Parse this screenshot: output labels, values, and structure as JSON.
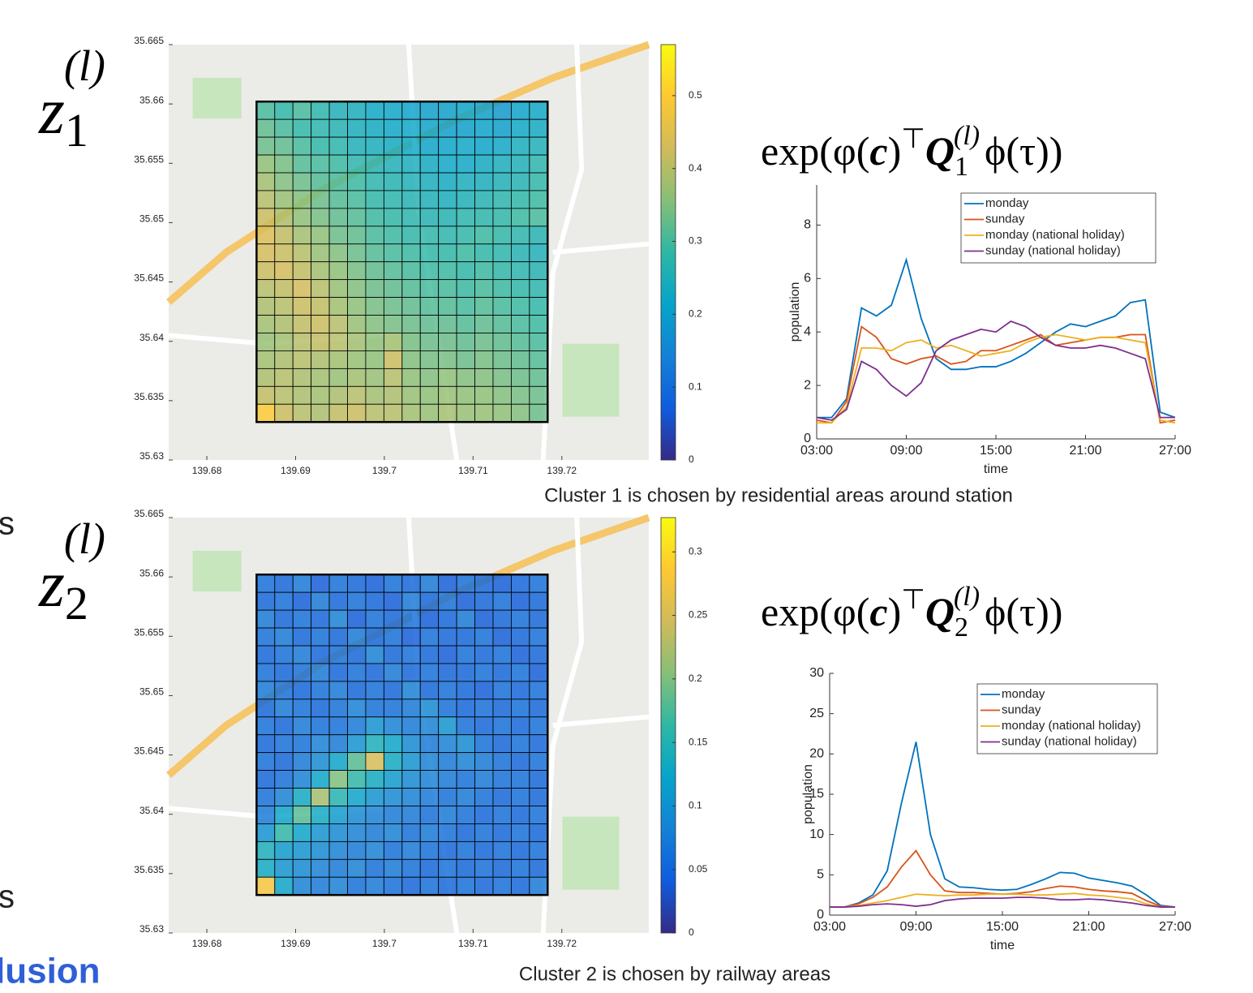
{
  "fragments": [
    "s",
    "s",
    "lusion"
  ],
  "panel_labels": [
    {
      "base": "z",
      "sub": "1",
      "sup": "(l)"
    },
    {
      "base": "z",
      "sub": "2",
      "sup": "(l)"
    }
  ],
  "formulas": [
    {
      "parts": [
        "exp(",
        "φ(",
        "c",
        ")",
        "⊤",
        "Q",
        "1",
        "(l)",
        "ϕ(τ))"
      ]
    },
    {
      "parts": [
        "exp(",
        "φ(",
        "c",
        ")",
        "⊤",
        "Q",
        "2",
        "(l)",
        "ϕ(τ))"
      ]
    }
  ],
  "captions": [
    "Cluster 1 is chosen by residential areas around station",
    "Cluster 2 is chosen by railway areas"
  ],
  "chart_data": [
    {
      "type": "heatmap",
      "colormap": "parula",
      "xlim": [
        139.6757,
        139.7298
      ],
      "ylim": [
        35.63,
        35.665
      ],
      "xticks": [
        139.68,
        139.69,
        139.7,
        139.71,
        139.72
      ],
      "yticks": [
        35.63,
        35.635,
        35.64,
        35.645,
        35.65,
        35.655,
        35.66,
        35.665
      ],
      "grid_xlim": [
        139.6856,
        139.7184
      ],
      "grid_ylim": [
        35.6332,
        35.6602
      ],
      "clim": [
        0,
        0.57
      ],
      "cticks": [
        0,
        0.1,
        0.2,
        0.3,
        0.4,
        0.5
      ],
      "z": [
        [
          0.3,
          0.28,
          0.3,
          0.27,
          0.25,
          0.24,
          0.22,
          0.22,
          0.21,
          0.2,
          0.2,
          0.21,
          0.2,
          0.19,
          0.21,
          0.22
        ],
        [
          0.32,
          0.3,
          0.28,
          0.27,
          0.26,
          0.24,
          0.23,
          0.22,
          0.22,
          0.21,
          0.2,
          0.2,
          0.21,
          0.2,
          0.22,
          0.23
        ],
        [
          0.33,
          0.32,
          0.3,
          0.28,
          0.27,
          0.25,
          0.24,
          0.23,
          0.22,
          0.21,
          0.21,
          0.22,
          0.21,
          0.22,
          0.24,
          0.25
        ],
        [
          0.36,
          0.34,
          0.31,
          0.3,
          0.29,
          0.27,
          0.26,
          0.25,
          0.24,
          0.23,
          0.22,
          0.22,
          0.23,
          0.24,
          0.25,
          0.27
        ],
        [
          0.38,
          0.35,
          0.33,
          0.31,
          0.3,
          0.29,
          0.27,
          0.26,
          0.25,
          0.24,
          0.23,
          0.24,
          0.24,
          0.25,
          0.26,
          0.28
        ],
        [
          0.4,
          0.37,
          0.35,
          0.33,
          0.31,
          0.3,
          0.28,
          0.27,
          0.26,
          0.25,
          0.24,
          0.25,
          0.26,
          0.27,
          0.28,
          0.29
        ],
        [
          0.42,
          0.39,
          0.36,
          0.34,
          0.32,
          0.31,
          0.29,
          0.28,
          0.27,
          0.26,
          0.26,
          0.27,
          0.27,
          0.28,
          0.29,
          0.3
        ],
        [
          0.44,
          0.41,
          0.38,
          0.36,
          0.33,
          0.32,
          0.3,
          0.29,
          0.28,
          0.28,
          0.27,
          0.28,
          0.29,
          0.28,
          0.27,
          0.26
        ],
        [
          0.43,
          0.42,
          0.4,
          0.37,
          0.35,
          0.33,
          0.31,
          0.3,
          0.29,
          0.28,
          0.28,
          0.29,
          0.28,
          0.27,
          0.26,
          0.25
        ],
        [
          0.42,
          0.43,
          0.41,
          0.38,
          0.36,
          0.34,
          0.32,
          0.31,
          0.3,
          0.29,
          0.29,
          0.28,
          0.29,
          0.28,
          0.27,
          0.26
        ],
        [
          0.4,
          0.41,
          0.43,
          0.4,
          0.37,
          0.35,
          0.33,
          0.32,
          0.31,
          0.3,
          0.3,
          0.29,
          0.3,
          0.29,
          0.28,
          0.27
        ],
        [
          0.39,
          0.4,
          0.42,
          0.41,
          0.38,
          0.36,
          0.34,
          0.33,
          0.32,
          0.31,
          0.31,
          0.3,
          0.31,
          0.3,
          0.29,
          0.28
        ],
        [
          0.38,
          0.39,
          0.41,
          0.42,
          0.4,
          0.37,
          0.35,
          0.34,
          0.33,
          0.32,
          0.32,
          0.31,
          0.32,
          0.31,
          0.3,
          0.29
        ],
        [
          0.37,
          0.38,
          0.4,
          0.41,
          0.4,
          0.38,
          0.36,
          0.38,
          0.34,
          0.33,
          0.33,
          0.32,
          0.33,
          0.32,
          0.31,
          0.3
        ],
        [
          0.38,
          0.39,
          0.4,
          0.39,
          0.38,
          0.37,
          0.36,
          0.42,
          0.35,
          0.34,
          0.34,
          0.33,
          0.34,
          0.33,
          0.32,
          0.31
        ],
        [
          0.39,
          0.4,
          0.39,
          0.38,
          0.37,
          0.38,
          0.37,
          0.4,
          0.36,
          0.35,
          0.36,
          0.35,
          0.35,
          0.34,
          0.33,
          0.32
        ],
        [
          0.41,
          0.4,
          0.39,
          0.38,
          0.39,
          0.4,
          0.38,
          0.39,
          0.37,
          0.36,
          0.37,
          0.36,
          0.36,
          0.35,
          0.34,
          0.33
        ],
        [
          0.5,
          0.42,
          0.4,
          0.39,
          0.41,
          0.42,
          0.4,
          0.4,
          0.38,
          0.37,
          0.38,
          0.37,
          0.37,
          0.36,
          0.35,
          0.33
        ]
      ]
    },
    {
      "type": "heatmap",
      "colormap": "parula",
      "xlim": [
        139.6757,
        139.7298
      ],
      "ylim": [
        35.63,
        35.665
      ],
      "xticks": [
        139.68,
        139.69,
        139.7,
        139.71,
        139.72
      ],
      "yticks": [
        35.63,
        35.635,
        35.64,
        35.645,
        35.65,
        35.655,
        35.66,
        35.665
      ],
      "grid_xlim": [
        139.6856,
        139.7184
      ],
      "grid_ylim": [
        35.6332,
        35.6602
      ],
      "clim": [
        0,
        0.327
      ],
      "cticks": [
        0,
        0.05,
        0.1,
        0.15,
        0.2,
        0.25,
        0.3
      ],
      "z": [
        [
          0.06,
          0.05,
          0.07,
          0.04,
          0.06,
          0.05,
          0.04,
          0.06,
          0.05,
          0.07,
          0.04,
          0.06,
          0.05,
          0.04,
          0.05,
          0.06
        ],
        [
          0.05,
          0.06,
          0.04,
          0.07,
          0.05,
          0.06,
          0.05,
          0.04,
          0.07,
          0.05,
          0.06,
          0.04,
          0.05,
          0.06,
          0.04,
          0.05
        ],
        [
          0.07,
          0.05,
          0.06,
          0.05,
          0.08,
          0.04,
          0.06,
          0.05,
          0.06,
          0.04,
          0.05,
          0.07,
          0.04,
          0.05,
          0.06,
          0.05
        ],
        [
          0.06,
          0.07,
          0.05,
          0.06,
          0.05,
          0.07,
          0.05,
          0.06,
          0.04,
          0.06,
          0.05,
          0.05,
          0.06,
          0.04,
          0.05,
          0.06
        ],
        [
          0.05,
          0.06,
          0.07,
          0.05,
          0.06,
          0.05,
          0.08,
          0.05,
          0.06,
          0.05,
          0.04,
          0.06,
          0.05,
          0.06,
          0.04,
          0.05
        ],
        [
          0.06,
          0.05,
          0.06,
          0.07,
          0.05,
          0.06,
          0.05,
          0.07,
          0.05,
          0.06,
          0.05,
          0.05,
          0.06,
          0.05,
          0.06,
          0.04
        ],
        [
          0.07,
          0.06,
          0.05,
          0.06,
          0.07,
          0.05,
          0.06,
          0.05,
          0.08,
          0.05,
          0.06,
          0.05,
          0.04,
          0.06,
          0.05,
          0.06
        ],
        [
          0.05,
          0.07,
          0.06,
          0.05,
          0.06,
          0.08,
          0.06,
          0.06,
          0.07,
          0.09,
          0.06,
          0.05,
          0.06,
          0.05,
          0.06,
          0.05
        ],
        [
          0.06,
          0.05,
          0.07,
          0.06,
          0.06,
          0.07,
          0.1,
          0.08,
          0.07,
          0.08,
          0.1,
          0.06,
          0.05,
          0.06,
          0.05,
          0.06
        ],
        [
          0.05,
          0.06,
          0.06,
          0.08,
          0.07,
          0.1,
          0.14,
          0.12,
          0.09,
          0.07,
          0.08,
          0.09,
          0.06,
          0.05,
          0.06,
          0.05
        ],
        [
          0.06,
          0.05,
          0.07,
          0.09,
          0.12,
          0.18,
          0.25,
          0.13,
          0.1,
          0.08,
          0.07,
          0.08,
          0.07,
          0.06,
          0.05,
          0.06
        ],
        [
          0.05,
          0.06,
          0.08,
          0.12,
          0.2,
          0.16,
          0.13,
          0.11,
          0.09,
          0.08,
          0.07,
          0.06,
          0.07,
          0.06,
          0.06,
          0.05
        ],
        [
          0.06,
          0.08,
          0.13,
          0.22,
          0.15,
          0.12,
          0.1,
          0.09,
          0.08,
          0.07,
          0.06,
          0.07,
          0.06,
          0.05,
          0.06,
          0.05
        ],
        [
          0.07,
          0.12,
          0.18,
          0.13,
          0.11,
          0.09,
          0.08,
          0.07,
          0.07,
          0.06,
          0.07,
          0.06,
          0.05,
          0.06,
          0.05,
          0.06
        ],
        [
          0.1,
          0.16,
          0.12,
          0.1,
          0.09,
          0.08,
          0.07,
          0.08,
          0.06,
          0.07,
          0.06,
          0.05,
          0.06,
          0.05,
          0.06,
          0.05
        ],
        [
          0.14,
          0.11,
          0.1,
          0.09,
          0.08,
          0.07,
          0.08,
          0.06,
          0.07,
          0.06,
          0.05,
          0.06,
          0.05,
          0.06,
          0.05,
          0.06
        ],
        [
          0.13,
          0.1,
          0.09,
          0.08,
          0.07,
          0.08,
          0.06,
          0.07,
          0.06,
          0.05,
          0.06,
          0.05,
          0.06,
          0.05,
          0.06,
          0.05
        ],
        [
          0.28,
          0.12,
          0.08,
          0.07,
          0.08,
          0.06,
          0.07,
          0.06,
          0.05,
          0.06,
          0.05,
          0.06,
          0.05,
          0.06,
          0.05,
          0.07
        ]
      ]
    },
    {
      "type": "line",
      "xlabel": "time",
      "ylabel": "population",
      "x": [
        3,
        4,
        5,
        6,
        7,
        8,
        9,
        10,
        11,
        12,
        13,
        14,
        15,
        16,
        17,
        18,
        19,
        20,
        21,
        22,
        23,
        24,
        25,
        26,
        27
      ],
      "xlim": [
        3,
        27
      ],
      "ylim": [
        0,
        9.5
      ],
      "xticks": [
        {
          "value": 3,
          "label": "03:00"
        },
        {
          "value": 9,
          "label": "09:00"
        },
        {
          "value": 15,
          "label": "15:00"
        },
        {
          "value": 21,
          "label": "21:00"
        },
        {
          "value": 27,
          "label": "27:00"
        }
      ],
      "yticks": [
        0,
        2,
        4,
        6,
        8
      ],
      "series": [
        {
          "name": "monday",
          "color": "#0072bd",
          "values": [
            0.8,
            0.8,
            1.5,
            4.9,
            4.6,
            5.0,
            6.7,
            4.5,
            3.0,
            2.6,
            2.6,
            2.7,
            2.7,
            2.9,
            3.2,
            3.6,
            4.0,
            4.3,
            4.2,
            4.4,
            4.6,
            5.1,
            5.2,
            1.0,
            0.8
          ]
        },
        {
          "name": "sunday",
          "color": "#d95319",
          "values": [
            0.7,
            0.6,
            1.4,
            4.2,
            3.8,
            3.0,
            2.8,
            3.0,
            3.1,
            2.8,
            2.9,
            3.3,
            3.3,
            3.5,
            3.7,
            3.9,
            3.5,
            3.6,
            3.7,
            3.8,
            3.8,
            3.9,
            3.9,
            0.6,
            0.7
          ]
        },
        {
          "name": "monday (national holiday)",
          "color": "#edb120",
          "values": [
            0.6,
            0.6,
            1.2,
            3.4,
            3.4,
            3.3,
            3.6,
            3.7,
            3.4,
            3.5,
            3.3,
            3.1,
            3.2,
            3.3,
            3.6,
            3.8,
            3.9,
            3.8,
            3.7,
            3.8,
            3.8,
            3.7,
            3.6,
            0.7,
            0.6
          ]
        },
        {
          "name": "sunday (national holiday)",
          "color": "#7e2f8e",
          "values": [
            0.8,
            0.7,
            1.1,
            2.9,
            2.6,
            2.0,
            1.6,
            2.1,
            3.3,
            3.7,
            3.9,
            4.1,
            4.0,
            4.4,
            4.2,
            3.8,
            3.5,
            3.4,
            3.4,
            3.5,
            3.4,
            3.2,
            3.0,
            0.8,
            0.8
          ]
        }
      ]
    },
    {
      "type": "line",
      "xlabel": "time",
      "ylabel": "population",
      "x": [
        3,
        4,
        5,
        6,
        7,
        8,
        9,
        10,
        11,
        12,
        13,
        14,
        15,
        16,
        17,
        18,
        19,
        20,
        21,
        22,
        23,
        24,
        25,
        26,
        27
      ],
      "xlim": [
        3,
        27
      ],
      "ylim": [
        0,
        30
      ],
      "xticks": [
        {
          "value": 3,
          "label": "03:00"
        },
        {
          "value": 9,
          "label": "09:00"
        },
        {
          "value": 15,
          "label": "15:00"
        },
        {
          "value": 21,
          "label": "21:00"
        },
        {
          "value": 27,
          "label": "27:00"
        }
      ],
      "yticks": [
        0,
        5,
        10,
        15,
        20,
        25,
        30
      ],
      "series": [
        {
          "name": "monday",
          "color": "#0072bd",
          "values": [
            1.0,
            1.0,
            1.5,
            2.5,
            5.5,
            14,
            21.5,
            10,
            4.5,
            3.5,
            3.4,
            3.2,
            3.1,
            3.2,
            3.8,
            4.5,
            5.3,
            5.2,
            4.6,
            4.3,
            4.0,
            3.6,
            2.5,
            1.2,
            1.0
          ]
        },
        {
          "name": "sunday",
          "color": "#d95319",
          "values": [
            1.0,
            1.0,
            1.4,
            2.2,
            3.5,
            6.0,
            8.0,
            5.0,
            3.0,
            2.8,
            2.8,
            2.7,
            2.6,
            2.7,
            2.9,
            3.3,
            3.6,
            3.5,
            3.2,
            3.0,
            2.9,
            2.7,
            1.8,
            1.1,
            1.0
          ]
        },
        {
          "name": "monday (national holiday)",
          "color": "#edb120",
          "values": [
            1.0,
            1.0,
            1.2,
            1.5,
            1.8,
            2.2,
            2.6,
            2.5,
            2.4,
            2.5,
            2.5,
            2.6,
            2.6,
            2.6,
            2.5,
            2.5,
            2.6,
            2.7,
            2.5,
            2.4,
            2.2,
            2.0,
            1.4,
            1.0,
            1.0
          ]
        },
        {
          "name": "sunday (national holiday)",
          "color": "#7e2f8e",
          "values": [
            1.0,
            1.0,
            1.1,
            1.3,
            1.4,
            1.3,
            1.1,
            1.3,
            1.8,
            2.0,
            2.1,
            2.1,
            2.1,
            2.2,
            2.2,
            2.1,
            1.9,
            1.9,
            2.0,
            1.9,
            1.7,
            1.5,
            1.2,
            1.0,
            1.0
          ]
        }
      ]
    }
  ]
}
